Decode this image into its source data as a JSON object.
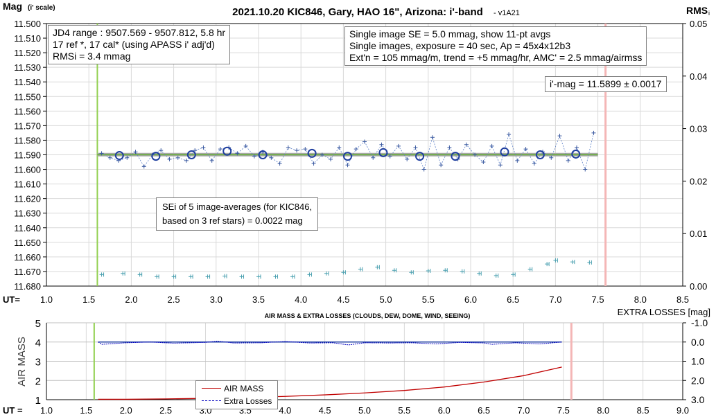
{
  "chart_data": [
    {
      "type": "scatter",
      "title": "2021.10.20 KIC846, Gary, HAO 16\", Arizona: i'-band",
      "version": " - v1A21",
      "ylabel": "Mag",
      "ylabel_sub": "(i' scale)",
      "y2label": "RMS",
      "y2label_sub": "i",
      "xlabel": "UT=",
      "xlim": [
        1.0,
        8.5
      ],
      "ylim": [
        11.5,
        11.68
      ],
      "y2lim": [
        0,
        0.05
      ],
      "xticks": [
        "1.0",
        "1.5",
        "2.0",
        "2.5",
        "3.0",
        "3.5",
        "4.0",
        "4.5",
        "5.0",
        "5.5",
        "6.0",
        "6.5",
        "7.0",
        "7.5",
        "8.0",
        "8.5"
      ],
      "yticks": [
        "11.500",
        "11.510",
        "11.520",
        "11.530",
        "11.540",
        "11.550",
        "11.560",
        "11.570",
        "11.580",
        "11.590",
        "11.600",
        "11.610",
        "11.620",
        "11.630",
        "11.640",
        "11.650",
        "11.660",
        "11.670",
        "11.680"
      ],
      "y2ticks": [
        "0.05",
        "0.04",
        "0.03",
        "0.02",
        "0.01",
        "0.00"
      ],
      "grid": true,
      "start_marker_ut": 1.6,
      "end_marker_ut": 7.59,
      "mean_mag": 11.5899,
      "series": [
        {
          "name": "Single images",
          "x": [
            1.65,
            1.75,
            1.85,
            1.95,
            2.05,
            2.15,
            2.25,
            2.35,
            2.45,
            2.55,
            2.65,
            2.75,
            2.85,
            2.95,
            3.05,
            3.15,
            3.25,
            3.35,
            3.45,
            3.55,
            3.65,
            3.75,
            3.85,
            3.95,
            4.05,
            4.15,
            4.25,
            4.35,
            4.45,
            4.55,
            4.65,
            4.75,
            4.85,
            4.95,
            5.05,
            5.15,
            5.25,
            5.35,
            5.45,
            5.55,
            5.65,
            5.75,
            5.85,
            5.95,
            6.05,
            6.15,
            6.25,
            6.35,
            6.45,
            6.55,
            6.65,
            6.75,
            6.85,
            6.95,
            7.05,
            7.15,
            7.25,
            7.35,
            7.45
          ],
          "y": [
            11.589,
            11.592,
            11.594,
            11.592,
            11.588,
            11.598,
            11.59,
            11.587,
            11.593,
            11.592,
            11.594,
            11.587,
            11.585,
            11.594,
            11.586,
            11.585,
            11.589,
            11.584,
            11.591,
            11.588,
            11.592,
            11.596,
            11.585,
            11.587,
            11.586,
            11.596,
            11.59,
            11.593,
            11.585,
            11.597,
            11.586,
            11.581,
            11.592,
            11.583,
            11.591,
            11.584,
            11.593,
            11.585,
            11.6,
            11.578,
            11.597,
            11.585,
            11.593,
            11.583,
            11.59,
            11.595,
            11.584,
            11.597,
            11.576,
            11.594,
            11.586,
            11.596,
            11.588,
            11.592,
            11.577,
            11.594,
            11.585,
            11.6,
            11.575
          ]
        },
        {
          "name": "11-pt averages",
          "x": [
            1.86,
            2.29,
            2.71,
            3.13,
            3.55,
            4.13,
            4.55,
            4.97,
            5.4,
            5.82,
            6.4,
            6.82,
            7.24
          ],
          "y": [
            11.5905,
            11.591,
            11.59,
            11.5875,
            11.59,
            11.589,
            11.591,
            11.5885,
            11.591,
            11.591,
            11.588,
            11.59,
            11.5895
          ]
        },
        {
          "name": "RMSi",
          "axis": "right",
          "x": [
            1.65,
            1.9,
            2.1,
            2.3,
            2.5,
            2.7,
            2.9,
            3.1,
            3.3,
            3.5,
            3.7,
            3.9,
            4.1,
            4.3,
            4.5,
            4.7,
            4.9,
            5.1,
            5.3,
            5.5,
            5.7,
            5.9,
            6.1,
            6.3,
            6.5,
            6.7,
            6.9,
            7.0,
            7.2,
            7.4
          ],
          "y": [
            0.0022,
            0.0024,
            0.0022,
            0.0018,
            0.0018,
            0.0018,
            0.0018,
            0.0019,
            0.0018,
            0.0018,
            0.0018,
            0.0018,
            0.0022,
            0.0024,
            0.0026,
            0.0032,
            0.0036,
            0.003,
            0.0026,
            0.0029,
            0.003,
            0.0028,
            0.0024,
            0.002,
            0.0022,
            0.0032,
            0.0042,
            0.0049,
            0.0046,
            0.0045
          ]
        }
      ],
      "annotations": {
        "box1": [
          "JD4 range : 9507.569 - 9507.812, 5.8  hr",
          "17 ref *, 17 cal* (using APASS i' adj'd)",
          "RMSi = 3.4 mmag"
        ],
        "box2": [
          "Single image SE = 5.0 mmag, show 11-pt avgs",
          "Single images, exposure = 40 sec, Ap = 45x4x12b3",
          "Ext'n = 105 mmag/m, trend = +5 mmag/hr, AMC' = 2.5 mmag/airmss"
        ],
        "mag_box": "i'-mag = 11.5899 ± 0.0017",
        "sei_box": [
          "SEi of 5 image-averages (for KIC846,",
          "based on 3 ref stars) = 0.0022 mag"
        ]
      }
    },
    {
      "type": "line",
      "title": "AIR MASS & EXTRA LOSSES (CLOUDS, DEW, DOME, WIND, SEEING)",
      "ylabel": "AIR MASS",
      "y2label": "EXTRA LOSSES [mag]",
      "xlabel": "UT =",
      "xlim": [
        1.0,
        9.0
      ],
      "ylim": [
        1,
        5
      ],
      "y2lim": [
        3.0,
        -1.0
      ],
      "xticks": [
        "1.0",
        "1.5",
        "2.0",
        "2.5",
        "3.0",
        "3.5",
        "4.0",
        "4.5",
        "5.0",
        "5.5",
        "6.0",
        "6.5",
        "7.0",
        "7.5",
        "8.0",
        "8.5",
        "9.0"
      ],
      "yticks": [
        "5",
        "4",
        "3",
        "2",
        "1"
      ],
      "y2ticks": [
        "-1.0",
        "0.0",
        "1.0",
        "2.0",
        "3.0"
      ],
      "start_marker_ut": 1.6,
      "end_marker_ut": 7.6,
      "legend": [
        "AIR MASS",
        "Extra Losses"
      ],
      "series": [
        {
          "name": "AIR MASS",
          "x": [
            1.65,
            2.0,
            2.5,
            3.0,
            3.5,
            4.0,
            4.5,
            5.0,
            5.5,
            6.0,
            6.5,
            7.0,
            7.48
          ],
          "y": [
            1.02,
            1.02,
            1.04,
            1.07,
            1.11,
            1.17,
            1.25,
            1.35,
            1.48,
            1.66,
            1.92,
            2.25,
            2.7
          ]
        },
        {
          "name": "Extra Losses",
          "x": [
            1.65,
            1.7,
            2.0,
            2.3,
            2.6,
            3.0,
            3.15,
            3.35,
            3.7,
            4.0,
            4.3,
            4.6,
            4.8,
            5.0,
            5.3,
            5.6,
            5.9,
            6.2,
            6.5,
            6.6,
            6.9,
            7.2,
            7.48
          ],
          "y": [
            0.0,
            0.12,
            0.04,
            0.0,
            0.06,
            0.02,
            -0.05,
            0.05,
            0.04,
            -0.03,
            0.05,
            0.04,
            0.15,
            0.04,
            0.05,
            0.04,
            0.1,
            0.02,
            0.05,
            0.12,
            0.04,
            0.1,
            0.0
          ]
        }
      ]
    }
  ]
}
